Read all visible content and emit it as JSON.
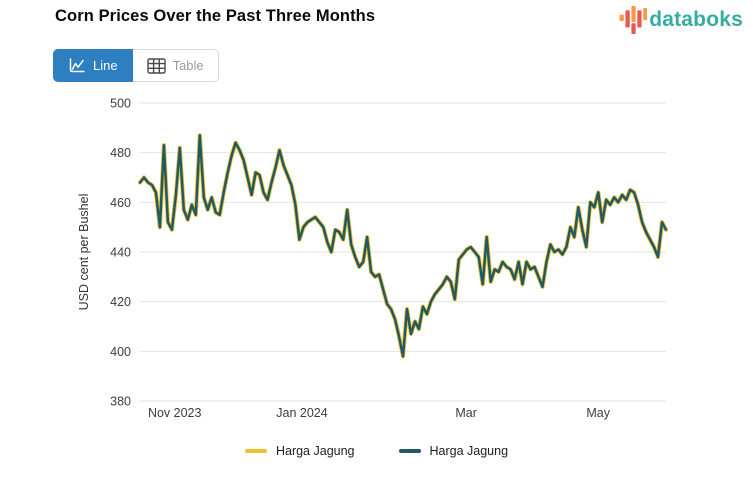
{
  "header": {
    "title": "Corn Prices Over the Past Three Months",
    "logo_text": "databoks"
  },
  "toolbar": {
    "line_label": "Line",
    "table_label": "Table"
  },
  "colors": {
    "accent_blue": "#2D7FC1",
    "logo_teal": "#36ADA2",
    "logo_orange": "#F2994A",
    "logo_red": "#E85A50",
    "grid": "#E3E3E3",
    "tick_text": "#3D3D3D"
  },
  "chart_data": {
    "type": "line",
    "title": "Corn Prices Over the Past Three Months",
    "xlabel": "",
    "ylabel": "USD cent per Bushel",
    "ylim": [
      380,
      500
    ],
    "y_ticks": [
      380,
      400,
      420,
      440,
      460,
      480,
      500
    ],
    "x_ticks": [
      {
        "label": "Nov 2023",
        "pos": 0.066
      },
      {
        "label": "Jan 2024",
        "pos": 0.308
      },
      {
        "label": "Mar",
        "pos": 0.62
      },
      {
        "label": "May",
        "pos": 0.871
      }
    ],
    "grid": "horizontal",
    "legend_position": "bottom",
    "series": [
      {
        "name": "Harga Jagung",
        "color": "#F0BF2E",
        "line_width": 4.2
      },
      {
        "name": "Harga Jagung",
        "color": "#1E5A68",
        "line_width": 2.5
      }
    ],
    "series_note": "both series plot the same values; teal drawn over yellow",
    "values": [
      468,
      470,
      468,
      467,
      464,
      450,
      483,
      452,
      449,
      463,
      482,
      457,
      453,
      459,
      455,
      487,
      462,
      457,
      462,
      456,
      455,
      464,
      472,
      479,
      484,
      481,
      477,
      470,
      463,
      472,
      471,
      464,
      461,
      468,
      474,
      481,
      475,
      471,
      467,
      459,
      445,
      450,
      452,
      453,
      454,
      452,
      450,
      444,
      440,
      449,
      448,
      445,
      457,
      443,
      438,
      434,
      436,
      446,
      432,
      430,
      431,
      425,
      419,
      417,
      413,
      406,
      398,
      417,
      407,
      412,
      409,
      418,
      415,
      420,
      423,
      425,
      427,
      430,
      428,
      421,
      437,
      439,
      441,
      442,
      440,
      438,
      427,
      446,
      428,
      433,
      432,
      436,
      434,
      433,
      429,
      436,
      427,
      436,
      433,
      434,
      430,
      426,
      436,
      443,
      440,
      441,
      439,
      442,
      450,
      446,
      458,
      449,
      442,
      460,
      458,
      464,
      452,
      461,
      459,
      462,
      460,
      463,
      461,
      465,
      464,
      459,
      452,
      448,
      445,
      442,
      438,
      452,
      449
    ]
  }
}
